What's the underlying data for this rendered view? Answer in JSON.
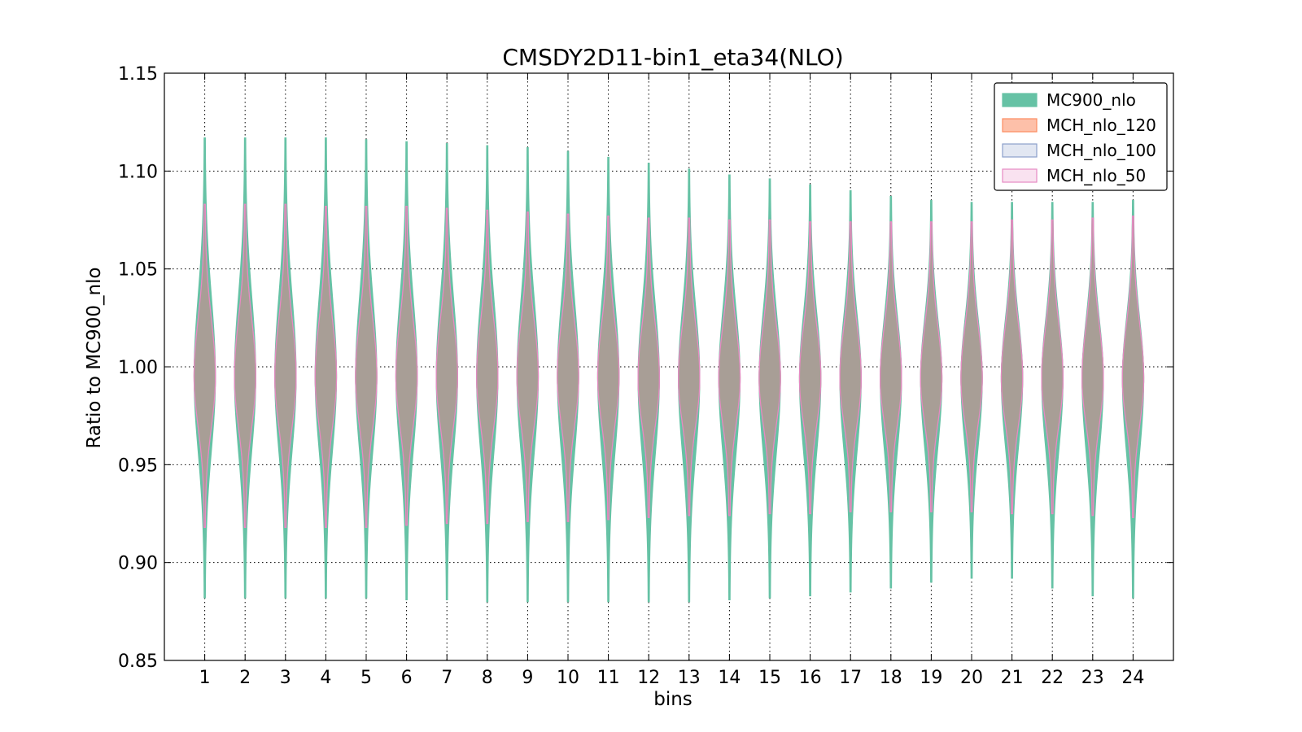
{
  "chart_data": {
    "type": "violin",
    "title": "CMSDY2D11-bin1_eta34(NLO)",
    "xlabel": "bins",
    "ylabel": "Ratio to MC900_nlo",
    "ylim": [
      0.85,
      1.15
    ],
    "yticks": [
      "0.85",
      "0.90",
      "0.95",
      "1.00",
      "1.05",
      "1.10",
      "1.15"
    ],
    "categories": [
      "1",
      "2",
      "3",
      "4",
      "5",
      "6",
      "7",
      "8",
      "9",
      "10",
      "11",
      "12",
      "13",
      "14",
      "15",
      "16",
      "17",
      "18",
      "19",
      "20",
      "21",
      "22",
      "23",
      "24"
    ],
    "grid": true,
    "legend_position": "top-right",
    "series": [
      {
        "name": "MC900_nlo",
        "color": "#66c2a5",
        "min": [
          0.882,
          0.882,
          0.882,
          0.882,
          0.882,
          0.881,
          0.881,
          0.88,
          0.88,
          0.88,
          0.88,
          0.88,
          0.88,
          0.881,
          0.882,
          0.883,
          0.885,
          0.887,
          0.89,
          0.892,
          0.892,
          0.887,
          0.883,
          0.882
        ],
        "max": [
          1.117,
          1.117,
          1.117,
          1.117,
          1.116,
          1.115,
          1.114,
          1.113,
          1.112,
          1.11,
          1.107,
          1.104,
          1.101,
          1.098,
          1.096,
          1.093,
          1.09,
          1.087,
          1.085,
          1.084,
          1.084,
          1.084,
          1.084,
          1.085
        ],
        "center": [
          0.995,
          0.995,
          0.995,
          0.995,
          0.995,
          0.995,
          0.995,
          0.995,
          0.995,
          0.995,
          0.995,
          0.994,
          0.994,
          0.994,
          0.994,
          0.994,
          0.994,
          0.994,
          0.994,
          0.994,
          0.994,
          0.994,
          0.994,
          0.994
        ]
      },
      {
        "name": "MCH_nlo_120",
        "color": "#fc8d62",
        "min": [
          0.918,
          0.918,
          0.918,
          0.918,
          0.918,
          0.919,
          0.92,
          0.92,
          0.921,
          0.921,
          0.922,
          0.923,
          0.924,
          0.924,
          0.925,
          0.925,
          0.926,
          0.926,
          0.926,
          0.926,
          0.925,
          0.925,
          0.924,
          0.923
        ],
        "max": [
          1.083,
          1.083,
          1.083,
          1.082,
          1.082,
          1.082,
          1.081,
          1.08,
          1.079,
          1.078,
          1.077,
          1.076,
          1.076,
          1.075,
          1.075,
          1.074,
          1.074,
          1.074,
          1.074,
          1.074,
          1.075,
          1.075,
          1.076,
          1.077
        ],
        "center": [
          0.995,
          0.995,
          0.995,
          0.995,
          0.995,
          0.995,
          0.995,
          0.995,
          0.995,
          0.995,
          0.995,
          0.994,
          0.994,
          0.994,
          0.994,
          0.994,
          0.994,
          0.994,
          0.994,
          0.994,
          0.994,
          0.994,
          0.994,
          0.994
        ]
      },
      {
        "name": "MCH_nlo_100",
        "color": "#8da0cb",
        "min": [
          0.918,
          0.918,
          0.918,
          0.918,
          0.918,
          0.919,
          0.92,
          0.92,
          0.921,
          0.921,
          0.922,
          0.923,
          0.924,
          0.924,
          0.925,
          0.925,
          0.926,
          0.926,
          0.926,
          0.926,
          0.925,
          0.925,
          0.924,
          0.923
        ],
        "max": [
          1.083,
          1.083,
          1.083,
          1.082,
          1.082,
          1.082,
          1.081,
          1.08,
          1.079,
          1.078,
          1.077,
          1.076,
          1.076,
          1.075,
          1.075,
          1.074,
          1.074,
          1.074,
          1.074,
          1.074,
          1.075,
          1.075,
          1.076,
          1.077
        ],
        "center": [
          0.995,
          0.995,
          0.995,
          0.995,
          0.995,
          0.995,
          0.995,
          0.995,
          0.995,
          0.995,
          0.995,
          0.994,
          0.994,
          0.994,
          0.994,
          0.994,
          0.994,
          0.994,
          0.994,
          0.994,
          0.994,
          0.994,
          0.994,
          0.994
        ]
      },
      {
        "name": "MCH_nlo_50",
        "color": "#e78ac3",
        "min": [
          0.918,
          0.918,
          0.918,
          0.918,
          0.918,
          0.919,
          0.92,
          0.92,
          0.921,
          0.921,
          0.922,
          0.923,
          0.924,
          0.924,
          0.925,
          0.925,
          0.926,
          0.926,
          0.926,
          0.926,
          0.925,
          0.925,
          0.924,
          0.923
        ],
        "max": [
          1.083,
          1.083,
          1.083,
          1.082,
          1.082,
          1.082,
          1.081,
          1.08,
          1.079,
          1.078,
          1.077,
          1.076,
          1.076,
          1.075,
          1.075,
          1.074,
          1.074,
          1.074,
          1.074,
          1.074,
          1.075,
          1.075,
          1.076,
          1.077
        ],
        "center": [
          0.995,
          0.995,
          0.995,
          0.995,
          0.995,
          0.995,
          0.995,
          0.995,
          0.995,
          0.995,
          0.995,
          0.994,
          0.994,
          0.994,
          0.994,
          0.994,
          0.994,
          0.994,
          0.994,
          0.994,
          0.994,
          0.994,
          0.994,
          0.994
        ]
      }
    ],
    "overlap_fill_color": "#a89e96"
  }
}
